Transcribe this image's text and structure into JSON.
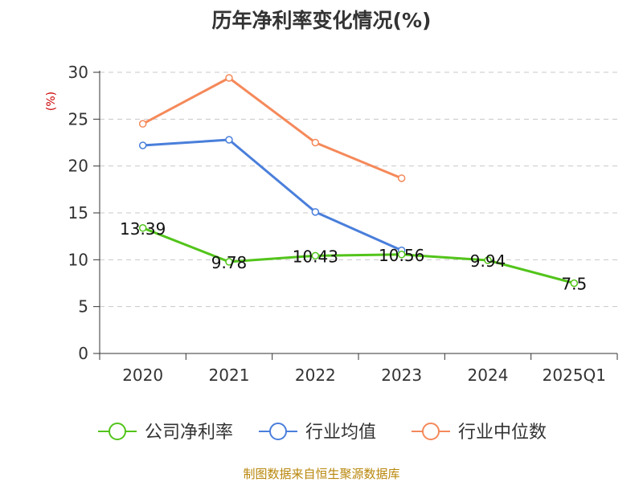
{
  "chart_data": {
    "type": "line",
    "title": "历年净利率变化情况(%)",
    "ylabel": "(%)",
    "xlabel": "",
    "categories": [
      "2020",
      "2021",
      "2022",
      "2023",
      "2024",
      "2025Q1"
    ],
    "ylim": [
      0,
      30
    ],
    "yticks": [
      0,
      5,
      10,
      15,
      20,
      25,
      30
    ],
    "grid": true,
    "legend_position": "bottom",
    "series": [
      {
        "name": "公司净利率",
        "color": "#52c41a",
        "values": [
          13.39,
          9.78,
          10.43,
          10.56,
          9.94,
          7.5
        ],
        "labels": [
          "13.39",
          "9.78",
          "10.43",
          "10.56",
          "9.94",
          "7.5"
        ]
      },
      {
        "name": "行业均值",
        "color": "#4a7fdb",
        "values": [
          22.2,
          22.8,
          15.1,
          11.0,
          null,
          null
        ]
      },
      {
        "name": "行业中位数",
        "color": "#f5895a",
        "values": [
          24.5,
          29.4,
          22.5,
          18.7,
          null,
          null
        ]
      }
    ]
  },
  "footer": {
    "source": "制图数据来自恒生聚源数据库"
  }
}
